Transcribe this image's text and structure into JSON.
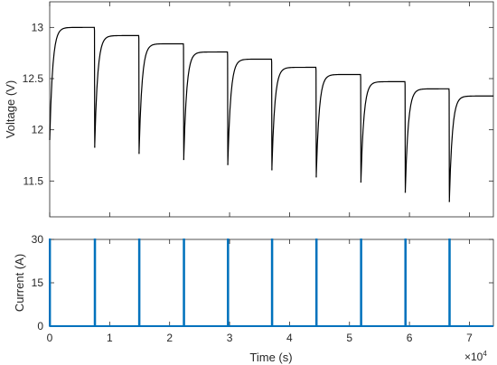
{
  "chart_data": [
    {
      "type": "line",
      "ylabel": "Voltage (V)",
      "xlim": [
        0,
        74000
      ],
      "ylim": [
        11.15,
        13.25
      ],
      "yticks": [
        "11.5",
        "12",
        "12.5",
        "13"
      ],
      "ytick_values": [
        11.5,
        12,
        12.5,
        13
      ],
      "grid": false,
      "legend": "none",
      "series_color": "#000000",
      "pulse_times": [
        7500,
        14900,
        22350,
        29700,
        37050,
        44450,
        51900,
        59300,
        66650
      ],
      "rest_levels": [
        13.0,
        12.92,
        12.84,
        12.76,
        12.69,
        12.61,
        12.54,
        12.47,
        12.4,
        12.33
      ],
      "dip_minimums": [
        11.83,
        11.77,
        11.71,
        11.66,
        11.61,
        11.54,
        11.49,
        11.39,
        11.3
      ],
      "start_voltage": 11.9
    },
    {
      "type": "line",
      "xlabel": "Time (s)",
      "ylabel": "Current (A)",
      "xlim": [
        0,
        74000
      ],
      "ylim": [
        0,
        30
      ],
      "xticks": [
        "0",
        "1",
        "2",
        "3",
        "4",
        "5",
        "6",
        "7"
      ],
      "xtick_values": [
        0,
        10000,
        20000,
        30000,
        40000,
        50000,
        60000,
        70000
      ],
      "x_multiplier": "×10",
      "x_multiplier_exp": "4",
      "yticks": [
        "0",
        "15",
        "30"
      ],
      "ytick_values": [
        0,
        15,
        30
      ],
      "grid": false,
      "legend": "none",
      "series_color": "#0072BD",
      "pulse_times": [
        0,
        7500,
        14900,
        22350,
        29700,
        37050,
        44450,
        51900,
        59300,
        66650
      ],
      "pulse_current": 30,
      "base_current": 0
    }
  ]
}
